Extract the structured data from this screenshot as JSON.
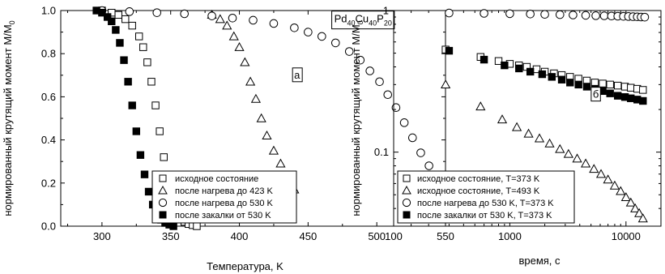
{
  "chart_data": [
    {
      "type": "scatter",
      "title": "",
      "xlabel": "Температура, K",
      "ylabel": "нормированный крутящий момент M/M",
      "ylabel_sub": "0",
      "xlim": [
        270,
        550
      ],
      "ylim": [
        0.0,
        1.0
      ],
      "xticks": [
        300,
        350,
        400,
        450,
        500,
        550
      ],
      "yticks": [
        0.0,
        0.2,
        0.4,
        0.6,
        0.8,
        1.0
      ],
      "ytick_labels": [
        "0.0",
        "0.2",
        "0.4",
        "0.6",
        "0.8",
        "1.0"
      ],
      "legend_position": "bottom-right",
      "annotations": [
        {
          "id": "formula",
          "parts": [
            [
              "Pd",
              ""
            ],
            [
              "40",
              "sub"
            ],
            [
              "Cu",
              ""
            ],
            [
              "40",
              "sub"
            ],
            [
              "P",
              ""
            ],
            [
              "20",
              "sub"
            ]
          ],
          "x": 490,
          "y": 0.945
        },
        {
          "id": "panel-label",
          "text": "а",
          "x": 442,
          "y": 0.7
        }
      ],
      "series": [
        {
          "name": "исходное состояние",
          "marker": "square-open",
          "x": [
            300,
            307,
            312,
            317,
            322,
            327,
            330,
            333,
            336,
            339,
            342,
            345,
            348,
            351,
            354,
            357,
            360,
            363,
            366,
            369
          ],
          "y": [
            1.0,
            0.99,
            0.98,
            0.96,
            0.93,
            0.88,
            0.83,
            0.76,
            0.67,
            0.56,
            0.44,
            0.32,
            0.22,
            0.14,
            0.08,
            0.04,
            0.02,
            0.01,
            0.005,
            0.0
          ]
        },
        {
          "name": "после нагрева до 423 K",
          "marker": "triangle-open",
          "x": [
            380,
            386,
            391,
            396,
            400,
            404,
            408,
            412,
            416,
            420,
            425,
            430,
            435,
            440
          ],
          "y": [
            0.98,
            0.96,
            0.93,
            0.88,
            0.83,
            0.76,
            0.67,
            0.59,
            0.5,
            0.42,
            0.35,
            0.29,
            0.23,
            0.17
          ]
        },
        {
          "name": "после нагрева до 530 K",
          "marker": "circle-open",
          "x": [
            300,
            320,
            340,
            360,
            380,
            395,
            410,
            425,
            440,
            450,
            460,
            470,
            480,
            488,
            495,
            502,
            508,
            514,
            520,
            526,
            532,
            538,
            544,
            550
          ],
          "y": [
            1.0,
            0.995,
            0.99,
            0.985,
            0.975,
            0.965,
            0.955,
            0.94,
            0.92,
            0.9,
            0.88,
            0.85,
            0.81,
            0.77,
            0.72,
            0.67,
            0.61,
            0.55,
            0.48,
            0.41,
            0.34,
            0.28,
            0.23,
            0.19
          ]
        },
        {
          "name": "после закалки от 530 K",
          "marker": "square-filled",
          "x": [
            296,
            300,
            304,
            307,
            310,
            313,
            316,
            319,
            322,
            325,
            328,
            331,
            334,
            337,
            340,
            343,
            346,
            349,
            352
          ],
          "y": [
            1.0,
            0.99,
            0.97,
            0.95,
            0.91,
            0.85,
            0.77,
            0.67,
            0.56,
            0.44,
            0.33,
            0.24,
            0.16,
            0.1,
            0.06,
            0.03,
            0.015,
            0.007,
            0.0
          ]
        }
      ]
    },
    {
      "type": "scatter",
      "title": "",
      "xlabel": "время, с",
      "ylabel": "нормированный крутящий момент M/M",
      "ylabel_sub": "0",
      "xscale": "log",
      "yscale": "log",
      "xlim": [
        100,
        20000
      ],
      "ylim": [
        0.03,
        1.0
      ],
      "xticks": [
        100,
        1000,
        10000
      ],
      "xtick_labels": [
        "100",
        "1000",
        "10000"
      ],
      "yticks": [
        0.1,
        1
      ],
      "ytick_labels": [
        "0.1",
        "1"
      ],
      "legend_position": "bottom-left",
      "annotations": [
        {
          "id": "panel-label",
          "text": "б",
          "x": 5500,
          "y": 0.255
        }
      ],
      "series": [
        {
          "name": "исходное состояние, T=373 K",
          "marker": "square-open",
          "x": [
            280,
            560,
            800,
            1000,
            1200,
            1400,
            1700,
            2000,
            2400,
            2800,
            3300,
            3900,
            4600,
            5400,
            6300,
            7300,
            8500,
            9800,
            11000,
            12500,
            14000
          ],
          "y": [
            0.53,
            0.47,
            0.44,
            0.42,
            0.41,
            0.4,
            0.385,
            0.37,
            0.36,
            0.35,
            0.34,
            0.33,
            0.32,
            0.31,
            0.305,
            0.3,
            0.295,
            0.29,
            0.285,
            0.28,
            0.275
          ]
        },
        {
          "name": "исходное состояние, T=493 K",
          "marker": "triangle-open",
          "x": [
            280,
            560,
            860,
            1150,
            1450,
            1800,
            2200,
            2700,
            3200,
            3800,
            4500,
            5300,
            6100,
            7000,
            8000,
            9000,
            10000,
            11000,
            12000,
            13000,
            14000
          ],
          "y": [
            0.3,
            0.21,
            0.17,
            0.15,
            0.135,
            0.125,
            0.115,
            0.105,
            0.097,
            0.09,
            0.083,
            0.076,
            0.07,
            0.064,
            0.058,
            0.053,
            0.048,
            0.044,
            0.04,
            0.037,
            0.034
          ]
        },
        {
          "name": "после нагрева до 530 K,  T=373 K",
          "marker": "circle-open",
          "x": [
            300,
            600,
            1000,
            1500,
            2000,
            2700,
            3500,
            4500,
            5500,
            6500,
            7500,
            8500,
            9500,
            10500,
            11500,
            12500,
            13500,
            14500
          ],
          "y": [
            0.96,
            0.955,
            0.95,
            0.945,
            0.94,
            0.935,
            0.93,
            0.925,
            0.92,
            0.918,
            0.915,
            0.912,
            0.91,
            0.908,
            0.905,
            0.903,
            0.9,
            0.898
          ]
        },
        {
          "name": "после закалки от 530 K,  T=373 K",
          "marker": "square-filled",
          "x": [
            300,
            600,
            900,
            1200,
            1500,
            1900,
            2300,
            2800,
            3300,
            3900,
            4600,
            5400,
            6300,
            7300,
            8500,
            9800,
            11000,
            12500,
            14000
          ],
          "y": [
            0.52,
            0.45,
            0.41,
            0.39,
            0.37,
            0.355,
            0.34,
            0.325,
            0.31,
            0.3,
            0.29,
            0.28,
            0.27,
            0.26,
            0.25,
            0.245,
            0.24,
            0.235,
            0.23
          ]
        }
      ]
    }
  ]
}
